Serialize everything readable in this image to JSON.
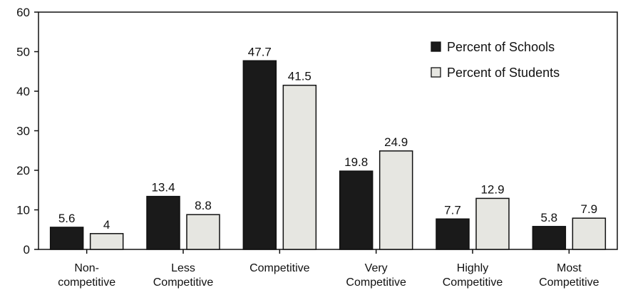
{
  "chart_data": {
    "type": "bar",
    "title": "",
    "xlabel": "",
    "ylabel": "",
    "ylim": [
      0,
      60
    ],
    "yticks": [
      0,
      10,
      20,
      30,
      40,
      50,
      60
    ],
    "grid": false,
    "legend_position": "top-right",
    "categories": [
      [
        "Non-",
        "competitive"
      ],
      [
        "Less",
        "Competitive"
      ],
      [
        "Competitive"
      ],
      [
        "Very",
        "Competitive"
      ],
      [
        "Highly",
        "Competitive"
      ],
      [
        "Most",
        "Competitive"
      ]
    ],
    "series": [
      {
        "name": "Percent of Schools",
        "color": "#1a1a1a",
        "values": [
          5.6,
          13.4,
          47.7,
          19.8,
          7.7,
          5.8
        ],
        "labels": [
          "5.6",
          "13.4",
          "47.7",
          "19.8",
          "7.7",
          "5.8"
        ]
      },
      {
        "name": "Percent of Students",
        "color": "#e6e6e1",
        "values": [
          4,
          8.8,
          41.5,
          24.9,
          12.9,
          7.9
        ],
        "labels": [
          "4",
          "8.8",
          "41.5",
          "24.9",
          "12.9",
          "7.9"
        ]
      }
    ]
  }
}
